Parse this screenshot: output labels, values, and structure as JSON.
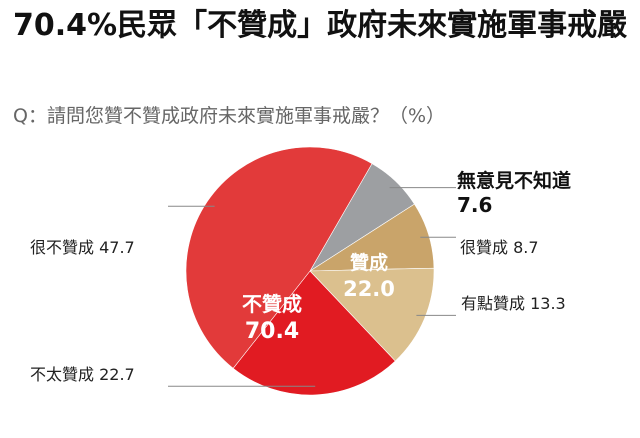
{
  "headline": "70.4%民眾「不贊成」政府未來實施軍事戒嚴",
  "question": "Q：請問您贊不贊成政府未來實施軍事戒嚴？（%）",
  "chart_data": {
    "type": "pie",
    "unit": "%",
    "slices": [
      {
        "label": "無意見不知道",
        "value": 7.6,
        "color": "#9d9fa2"
      },
      {
        "label": "很贊成",
        "value": 8.7,
        "color": "#c9a46a"
      },
      {
        "label": "有點贊成",
        "value": 13.3,
        "color": "#dbc08e"
      },
      {
        "label": "不太贊成",
        "value": 22.7,
        "color": "#e11b22"
      },
      {
        "label": "很不贊成",
        "value": 47.7,
        "color": "#e23a3a"
      }
    ],
    "groups": [
      {
        "label": "贊成",
        "value": 22.0
      },
      {
        "label": "不贊成",
        "value": 70.4
      }
    ]
  }
}
